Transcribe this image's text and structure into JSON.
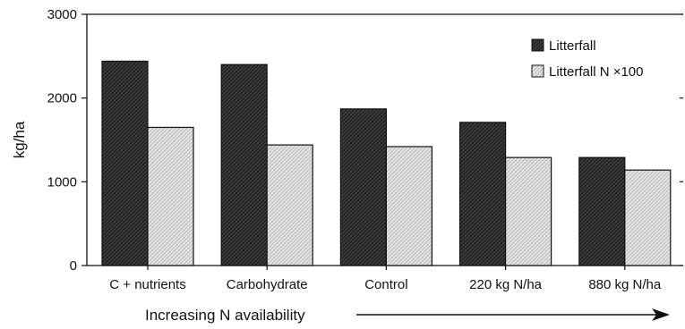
{
  "chart_data": {
    "type": "bar",
    "title": "",
    "xlabel": "Increasing N availability",
    "ylabel": "kg/ha",
    "ylim": [
      0,
      3000
    ],
    "yticks": [
      0,
      1000,
      2000,
      3000
    ],
    "grid": false,
    "legend_position": "top-right",
    "categories": [
      "C + nutrients",
      "Carbohydrate",
      "Control",
      "220 kg N/ha",
      "880 kg N/ha"
    ],
    "series": [
      {
        "name": "Litterfall",
        "values": [
          2440,
          2400,
          1870,
          1710,
          1290
        ],
        "color": "#2b2b2b",
        "hatch": "dark"
      },
      {
        "name": "Litterfall N ×100",
        "values": [
          1650,
          1440,
          1420,
          1290,
          1140
        ],
        "color": "#cfcfcf",
        "hatch": "light"
      }
    ]
  }
}
